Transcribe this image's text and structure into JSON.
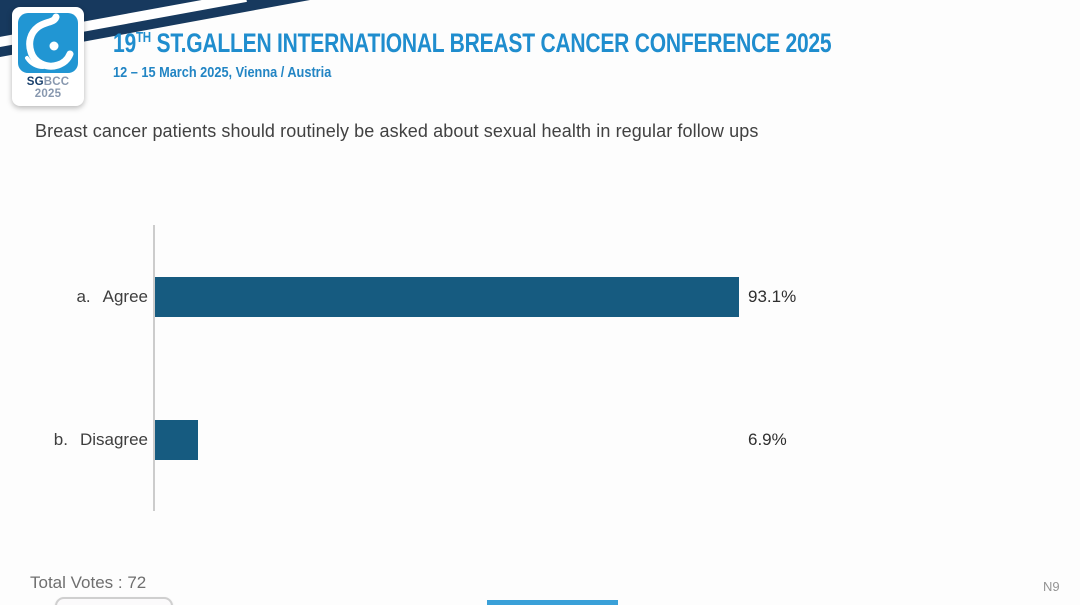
{
  "header": {
    "logo_icon": "sgbcc-breast-drop-icon",
    "logo_sg": "SG",
    "logo_rest": "BCC 2025",
    "title_num": "19",
    "title_sup": "TH",
    "title_rest": " ST.GALLEN INTERNATIONAL BREAST CANCER CONFERENCE 2025",
    "subtitle": "12 – 15 March 2025, Vienna / Austria"
  },
  "question": "Breast cancer patients should routinely be asked about sexual health in regular follow ups",
  "chart_data": {
    "type": "bar",
    "orientation": "horizontal",
    "title": "Breast cancer patients should routinely be asked about sexual health in regular follow ups",
    "categories": [
      "Agree",
      "Disagree"
    ],
    "category_letters": [
      "a.",
      "b."
    ],
    "values": [
      93.1,
      6.9
    ],
    "value_labels": [
      "93.1%",
      "6.9%"
    ],
    "xlim": [
      0,
      100
    ],
    "grid": false,
    "legend": "none",
    "bar_color": "#165B80",
    "axis_color": "#CCCCCC"
  },
  "footer": {
    "total_votes": "Total Votes : 72",
    "slide_code": "N9"
  },
  "colors": {
    "title_blue": "#1F8DCE",
    "subtitle_blue": "#2285C4",
    "ribbon_navy": "#17395E",
    "logo_blue": "#2196D3"
  }
}
